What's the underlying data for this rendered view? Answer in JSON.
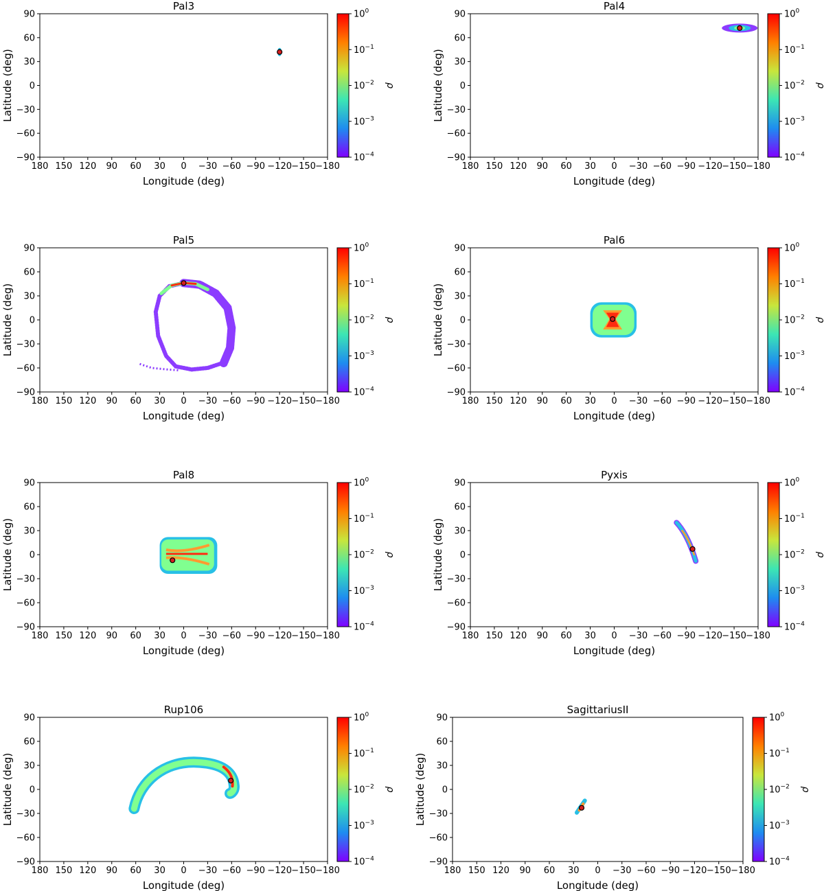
{
  "figure": {
    "colorbar": {
      "label": "ρ",
      "ticks": [
        {
          "base": "10",
          "exp": "0"
        },
        {
          "base": "10",
          "exp": "−1"
        },
        {
          "base": "10",
          "exp": "−2"
        },
        {
          "base": "10",
          "exp": "−3"
        },
        {
          "base": "10",
          "exp": "−4"
        }
      ],
      "gradient": [
        "#ff0000",
        "#ff8000",
        "#c8e63c",
        "#3ce6b4",
        "#1e8cf0",
        "#8000ff"
      ]
    },
    "density_colors": {
      "high": "#ff2a10",
      "mid": "#ff9a30",
      "low": "#80ff90",
      "vlow": "#28c0e6",
      "faint": "#8c3cff"
    }
  },
  "chart_data": [
    {
      "type": "heatmap",
      "title": "Pal3",
      "xlabel": "Longitude (deg)",
      "ylabel": "Latitude (deg)",
      "xlim": [
        180,
        -180
      ],
      "ylim": [
        -90,
        90
      ],
      "xticks": [
        "180",
        "150",
        "120",
        "90",
        "60",
        "30",
        "0",
        "−30",
        "−60",
        "−90",
        "−120",
        "−150",
        "−180"
      ],
      "yticks": [
        "−90",
        "−60",
        "−30",
        "0",
        "30",
        "60",
        "90"
      ],
      "colorbar_range": [
        0.0001,
        1
      ],
      "cluster_position": {
        "lon": -120,
        "lat": 42
      },
      "stream": {
        "lon_extent": [
          -117,
          -123
        ],
        "lat_extent": [
          38,
          46
        ]
      }
    },
    {
      "type": "heatmap",
      "title": "Pal4",
      "xlabel": "Longitude (deg)",
      "ylabel": "Latitude (deg)",
      "xlim": [
        180,
        -180
      ],
      "ylim": [
        -90,
        90
      ],
      "xticks": [
        "180",
        "150",
        "120",
        "90",
        "60",
        "30",
        "0",
        "−30",
        "−60",
        "−90",
        "−120",
        "−150",
        "−180"
      ],
      "yticks": [
        "−90",
        "−60",
        "−30",
        "0",
        "30",
        "60",
        "90"
      ],
      "colorbar_range": [
        0.0001,
        1
      ],
      "cluster_position": {
        "lon": -157,
        "lat": 72
      },
      "stream": {
        "lon_extent": [
          -135,
          -178
        ],
        "lat_extent": [
          66,
          78
        ]
      }
    },
    {
      "type": "heatmap",
      "title": "Pal5",
      "xlabel": "Longitude (deg)",
      "ylabel": "Latitude (deg)",
      "xlim": [
        180,
        -180
      ],
      "ylim": [
        -90,
        90
      ],
      "xticks": [
        "180",
        "150",
        "120",
        "90",
        "60",
        "30",
        "0",
        "−30",
        "−60",
        "−90",
        "−120",
        "−150",
        "−180"
      ],
      "yticks": [
        "−90",
        "−60",
        "−30",
        "0",
        "30",
        "60",
        "90"
      ],
      "colorbar_range": [
        0.0001,
        1
      ],
      "cluster_position": {
        "lon": 0,
        "lat": 46
      },
      "stream": {
        "lon_extent": [
          55,
          -58
        ],
        "lat_extent": [
          -64,
          48
        ]
      }
    },
    {
      "type": "heatmap",
      "title": "Pal6",
      "xlabel": "Longitude (deg)",
      "ylabel": "Latitude (deg)",
      "xlim": [
        180,
        -180
      ],
      "ylim": [
        -90,
        90
      ],
      "xticks": [
        "180",
        "150",
        "120",
        "90",
        "60",
        "30",
        "0",
        "−30",
        "−60",
        "−90",
        "−120",
        "−150",
        "−180"
      ],
      "yticks": [
        "−90",
        "−60",
        "−30",
        "0",
        "30",
        "60",
        "90"
      ],
      "colorbar_range": [
        0.0001,
        1
      ],
      "cluster_position": {
        "lon": 2,
        "lat": 1
      },
      "stream": {
        "lon_extent": [
          30,
          -28
        ],
        "lat_extent": [
          -22,
          22
        ]
      }
    },
    {
      "type": "heatmap",
      "title": "Pal8",
      "xlabel": "Longitude (deg)",
      "ylabel": "Latitude (deg)",
      "xlim": [
        180,
        -180
      ],
      "ylim": [
        -90,
        90
      ],
      "xticks": [
        "180",
        "150",
        "120",
        "90",
        "60",
        "30",
        "0",
        "−30",
        "−60",
        "−90",
        "−120",
        "−150",
        "−180"
      ],
      "yticks": [
        "−90",
        "−60",
        "−30",
        "0",
        "30",
        "60",
        "90"
      ],
      "colorbar_range": [
        0.0001,
        1
      ],
      "cluster_position": {
        "lon": 14,
        "lat": -7
      },
      "stream": {
        "lon_extent": [
          30,
          -42
        ],
        "lat_extent": [
          -24,
          22
        ]
      }
    },
    {
      "type": "heatmap",
      "title": "Pyxis",
      "xlabel": "Longitude (deg)",
      "ylabel": "Latitude (deg)",
      "xlim": [
        180,
        -180
      ],
      "ylim": [
        -90,
        90
      ],
      "xticks": [
        "180",
        "150",
        "120",
        "90",
        "60",
        "30",
        "0",
        "−30",
        "−60",
        "−90",
        "−120",
        "−150",
        "−180"
      ],
      "yticks": [
        "−90",
        "−60",
        "−30",
        "0",
        "30",
        "60",
        "90"
      ],
      "colorbar_range": [
        0.0001,
        1
      ],
      "cluster_position": {
        "lon": -98,
        "lat": 7
      },
      "stream": {
        "lon_extent": [
          -78,
          -103
        ],
        "lat_extent": [
          -9,
          40
        ]
      }
    },
    {
      "type": "heatmap",
      "title": "Rup106",
      "xlabel": "Longitude (deg)",
      "ylabel": "Latitude (deg)",
      "xlim": [
        180,
        -180
      ],
      "ylim": [
        -90,
        90
      ],
      "xticks": [
        "180",
        "150",
        "120",
        "90",
        "60",
        "30",
        "0",
        "−30",
        "−60",
        "−90",
        "−120",
        "−150",
        "−180"
      ],
      "yticks": [
        "−90",
        "−60",
        "−30",
        "0",
        "30",
        "60",
        "90"
      ],
      "colorbar_range": [
        0.0001,
        1
      ],
      "cluster_position": {
        "lon": -59,
        "lat": 11
      },
      "stream": {
        "lon_extent": [
          67,
          -69
        ],
        "lat_extent": [
          -29,
          40
        ]
      }
    },
    {
      "type": "heatmap",
      "title": "SagittariusII",
      "xlabel": "Longitude (deg)",
      "ylabel": "Latitude (deg)",
      "xlim": [
        180,
        -180
      ],
      "ylim": [
        -90,
        90
      ],
      "xticks": [
        "180",
        "150",
        "120",
        "90",
        "60",
        "30",
        "0",
        "−30",
        "−60",
        "−90",
        "−120",
        "−150",
        "−180"
      ],
      "yticks": [
        "−90",
        "−60",
        "−30",
        "0",
        "30",
        "60",
        "90"
      ],
      "colorbar_range": [
        0.0001,
        1
      ],
      "cluster_position": {
        "lon": 20,
        "lat": -23
      },
      "stream": {
        "lon_extent": [
          26,
          16
        ],
        "lat_extent": [
          -29,
          -14
        ]
      }
    }
  ]
}
